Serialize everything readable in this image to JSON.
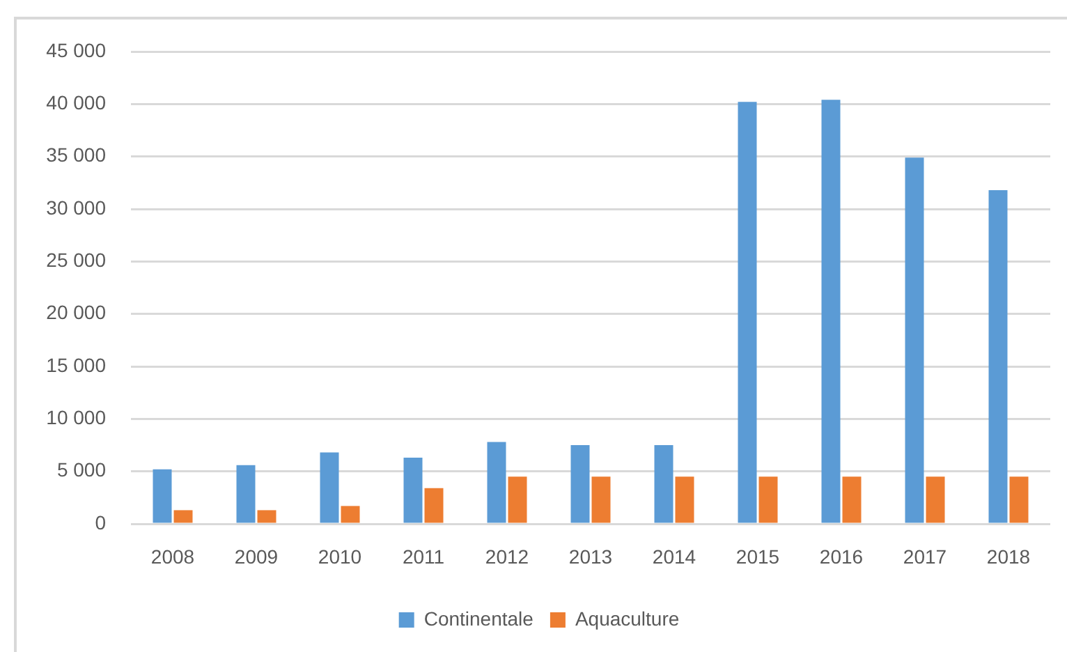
{
  "chart_data": {
    "type": "bar",
    "categories": [
      "2008",
      "2009",
      "2010",
      "2011",
      "2012",
      "2013",
      "2014",
      "2015",
      "2016",
      "2017",
      "2018"
    ],
    "series": [
      {
        "name": "Continentale",
        "color": "#5b9bd5",
        "values": [
          5200,
          5600,
          6800,
          6300,
          7800,
          7500,
          7500,
          40200,
          40400,
          34900,
          31800
        ]
      },
      {
        "name": "Aquaculture",
        "color": "#ed7d31",
        "values": [
          1300,
          1300,
          1700,
          3400,
          4500,
          4500,
          4500,
          4500,
          4500,
          4500,
          4500
        ]
      }
    ],
    "ylim": [
      0,
      45000
    ],
    "yticks": [
      0,
      {
        "value": 5000,
        "label": "5 000"
      },
      {
        "value": 10000,
        "label": "10 000"
      },
      {
        "value": 15000,
        "label": "15 000"
      },
      {
        "value": 20000,
        "label": "20 000"
      },
      {
        "value": 25000,
        "label": "25 000"
      },
      {
        "value": 30000,
        "label": "30 000"
      },
      {
        "value": 35000,
        "label": "35 000"
      },
      {
        "value": 40000,
        "label": "40 000"
      },
      {
        "value": 45000,
        "label": "45 000"
      }
    ],
    "grid": "y",
    "legend": "bottom"
  }
}
